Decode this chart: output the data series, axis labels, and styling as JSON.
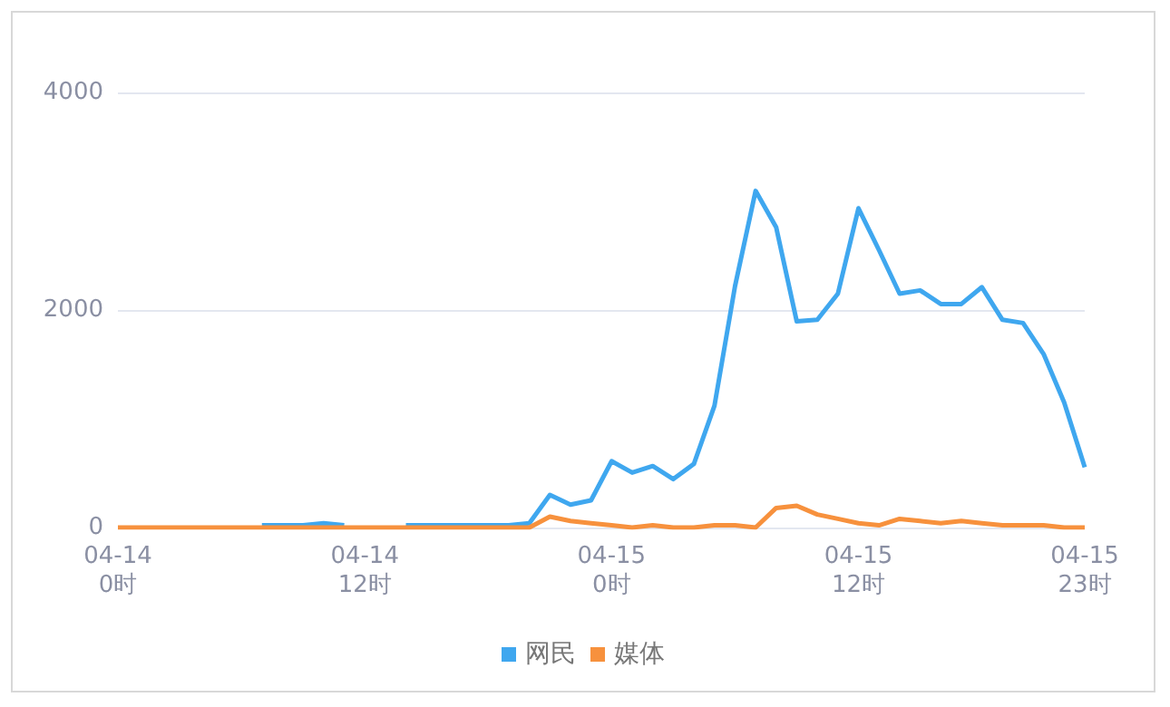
{
  "chart_data": {
    "type": "line",
    "categories": [
      "04-14\n0时",
      null,
      null,
      null,
      null,
      null,
      null,
      null,
      null,
      null,
      null,
      null,
      "04-14\n12时",
      null,
      null,
      null,
      null,
      null,
      null,
      null,
      null,
      null,
      null,
      null,
      "04-15\n0时",
      null,
      null,
      null,
      null,
      null,
      null,
      null,
      null,
      null,
      null,
      null,
      "04-15\n12时",
      null,
      null,
      null,
      null,
      null,
      null,
      null,
      null,
      null,
      null,
      "04-15\n23时"
    ],
    "series": [
      {
        "name": "网民",
        "color": "#3fa7ef",
        "values": [
          null,
          null,
          null,
          null,
          null,
          null,
          null,
          20,
          20,
          20,
          40,
          20,
          null,
          null,
          20,
          20,
          20,
          20,
          20,
          20,
          40,
          300,
          210,
          250,
          610,
          505,
          565,
          445,
          585,
          1120,
          2220,
          3095,
          2760,
          1895,
          1910,
          2150,
          2935,
          2550,
          2150,
          2180,
          2055,
          2055,
          2210,
          1910,
          1880,
          1595,
          1150,
          555
        ]
      },
      {
        "name": "媒体",
        "color": "#f7913d",
        "values": [
          0,
          0,
          0,
          0,
          0,
          0,
          0,
          0,
          0,
          0,
          0,
          0,
          0,
          0,
          0,
          0,
          0,
          0,
          0,
          0,
          0,
          100,
          60,
          40,
          20,
          0,
          20,
          0,
          0,
          20,
          20,
          0,
          180,
          200,
          120,
          80,
          40,
          20,
          80,
          60,
          40,
          60,
          40,
          20,
          20,
          20,
          0,
          0
        ]
      }
    ],
    "ylim": [
      0,
      4000
    ],
    "yticks": [
      0,
      2000,
      4000
    ],
    "grid": "y",
    "legend": "bottom",
    "marker": "none",
    "line_style": "solid"
  }
}
